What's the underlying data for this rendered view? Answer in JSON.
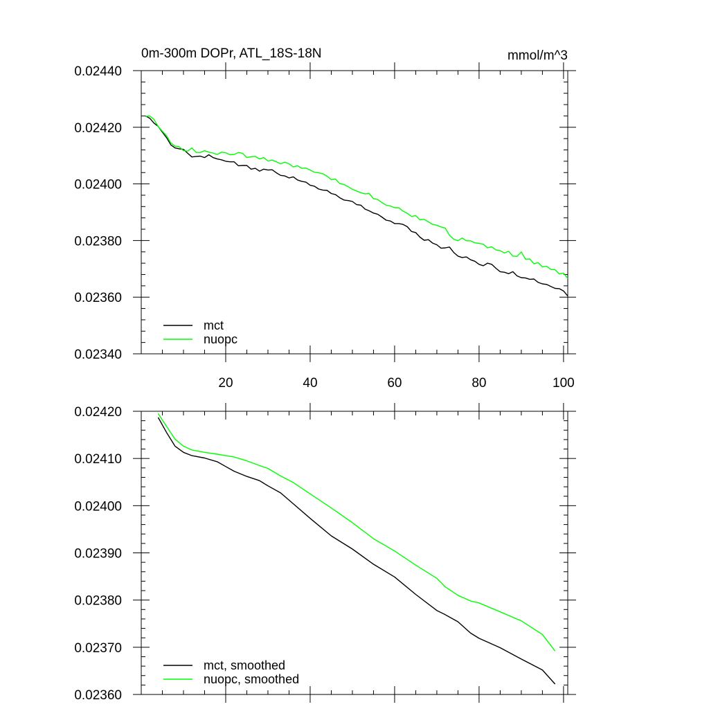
{
  "chart_data": [
    {
      "type": "line",
      "title": "0m-300m DOPr, ATL_18S-18N",
      "units": "mmol/m^3",
      "xlim": [
        0,
        101
      ],
      "ylim": [
        0.0234,
        0.0244
      ],
      "x_ticks": [
        20,
        40,
        60,
        80,
        100
      ],
      "y_ticks": [
        "0.02340",
        "0.02360",
        "0.02380",
        "0.02400",
        "0.02420",
        "0.02440"
      ],
      "y_tick_values": [
        0.0234,
        0.0236,
        0.0238,
        0.024,
        0.0242,
        0.0244
      ],
      "legend_position": "bottom-left",
      "series": [
        {
          "name": "mct",
          "color": "#000000",
          "x": [
            1,
            2,
            3,
            4,
            5,
            6,
            7,
            8,
            9,
            10,
            11,
            12,
            13,
            14,
            15,
            16,
            17,
            18,
            19,
            20,
            21,
            22,
            23,
            24,
            25,
            26,
            27,
            28,
            29,
            30,
            31,
            32,
            33,
            34,
            35,
            36,
            37,
            38,
            39,
            40,
            41,
            42,
            43,
            44,
            45,
            46,
            47,
            48,
            49,
            50,
            51,
            52,
            53,
            54,
            55,
            56,
            57,
            58,
            59,
            60,
            61,
            62,
            63,
            64,
            65,
            66,
            67,
            68,
            69,
            70,
            71,
            72,
            73,
            74,
            75,
            76,
            77,
            78,
            79,
            80,
            81,
            82,
            83,
            84,
            85,
            86,
            87,
            88,
            89,
            90,
            91,
            92,
            93,
            94,
            95,
            96,
            97,
            98,
            99,
            100,
            101
          ],
          "values": [
            0.02424,
            0.024232,
            0.024215,
            0.024203,
            0.024183,
            0.024163,
            0.024138,
            0.024127,
            0.024124,
            0.024122,
            0.024108,
            0.024095,
            0.024097,
            0.024098,
            0.024093,
            0.024103,
            0.024093,
            0.024088,
            0.024085,
            0.02408,
            0.024078,
            0.024078,
            0.024064,
            0.024065,
            0.024065,
            0.024052,
            0.024055,
            0.024045,
            0.024052,
            0.024049,
            0.02405,
            0.024039,
            0.02403,
            0.024028,
            0.024021,
            0.024025,
            0.024014,
            0.024009,
            0.024006,
            0.023995,
            0.023992,
            0.023982,
            0.023978,
            0.023977,
            0.023966,
            0.023962,
            0.023951,
            0.023943,
            0.023941,
            0.023938,
            0.023927,
            0.023925,
            0.023911,
            0.023905,
            0.023897,
            0.023893,
            0.023883,
            0.023872,
            0.023869,
            0.02386,
            0.02386,
            0.023857,
            0.023849,
            0.023832,
            0.023828,
            0.023812,
            0.023801,
            0.023803,
            0.023791,
            0.023785,
            0.023773,
            0.023774,
            0.023777,
            0.023758,
            0.023745,
            0.02374,
            0.023742,
            0.023732,
            0.023727,
            0.023716,
            0.023711,
            0.02372,
            0.023716,
            0.023702,
            0.02369,
            0.023688,
            0.023683,
            0.02369,
            0.023675,
            0.023669,
            0.023668,
            0.023663,
            0.023664,
            0.023652,
            0.023647,
            0.023645,
            0.023638,
            0.023631,
            0.02363,
            0.023622,
            0.023604
          ]
        },
        {
          "name": "nuopc",
          "color": "#00ff00",
          "x": [
            1,
            2,
            3,
            4,
            5,
            6,
            7,
            8,
            9,
            10,
            11,
            12,
            13,
            14,
            15,
            16,
            17,
            18,
            19,
            20,
            21,
            22,
            23,
            24,
            25,
            26,
            27,
            28,
            29,
            30,
            31,
            32,
            33,
            34,
            35,
            36,
            37,
            38,
            39,
            40,
            41,
            42,
            43,
            44,
            45,
            46,
            47,
            48,
            49,
            50,
            51,
            52,
            53,
            54,
            55,
            56,
            57,
            58,
            59,
            60,
            61,
            62,
            63,
            64,
            65,
            66,
            67,
            68,
            69,
            70,
            71,
            72,
            73,
            74,
            75,
            76,
            77,
            78,
            79,
            80,
            81,
            82,
            83,
            84,
            85,
            86,
            87,
            88,
            89,
            90,
            91,
            92,
            93,
            94,
            95,
            96,
            97,
            98,
            99,
            100,
            101
          ],
          "values": [
            0.024238,
            0.02424,
            0.024228,
            0.024203,
            0.024186,
            0.02417,
            0.024145,
            0.024133,
            0.024131,
            0.024117,
            0.024116,
            0.024127,
            0.024111,
            0.024111,
            0.024117,
            0.024112,
            0.024109,
            0.024104,
            0.024112,
            0.02411,
            0.024103,
            0.024104,
            0.024111,
            0.024108,
            0.024093,
            0.024096,
            0.024097,
            0.024088,
            0.024093,
            0.024081,
            0.024084,
            0.024078,
            0.024071,
            0.024077,
            0.024071,
            0.02406,
            0.024064,
            0.024055,
            0.024056,
            0.024049,
            0.024041,
            0.024039,
            0.024036,
            0.024027,
            0.024015,
            0.024017,
            0.024001,
            0.023998,
            0.02399,
            0.023981,
            0.023975,
            0.023969,
            0.023965,
            0.023966,
            0.023948,
            0.023945,
            0.023934,
            0.023925,
            0.023922,
            0.023916,
            0.023916,
            0.023904,
            0.023896,
            0.023885,
            0.023888,
            0.023873,
            0.023875,
            0.023866,
            0.023857,
            0.023854,
            0.023848,
            0.023844,
            0.023818,
            0.023805,
            0.023799,
            0.023809,
            0.023799,
            0.023799,
            0.023792,
            0.02379,
            0.023787,
            0.023774,
            0.023778,
            0.023767,
            0.023764,
            0.023756,
            0.023762,
            0.023745,
            0.023744,
            0.02376,
            0.023734,
            0.023735,
            0.023718,
            0.023722,
            0.023707,
            0.023709,
            0.023698,
            0.023697,
            0.023682,
            0.023685,
            0.023666
          ]
        }
      ]
    },
    {
      "type": "line",
      "title": "",
      "units": "",
      "xlim": [
        0,
        101
      ],
      "ylim": [
        0.0236,
        0.0242
      ],
      "x_ticks": [
        20,
        40,
        60,
        80,
        100
      ],
      "y_ticks": [
        "0.02360",
        "0.02370",
        "0.02380",
        "0.02390",
        "0.02400",
        "0.02410",
        "0.02420"
      ],
      "y_tick_values": [
        0.0236,
        0.0237,
        0.0238,
        0.0239,
        0.024,
        0.0241,
        0.0242
      ],
      "legend_position": "bottom-left",
      "series": [
        {
          "name": "mct, smoothed",
          "color": "#000000",
          "x": [
            4,
            6,
            8,
            10,
            12,
            15,
            18,
            20,
            22,
            25,
            28,
            30,
            33,
            36,
            40,
            45,
            50,
            55,
            60,
            65,
            70,
            72,
            75,
            78,
            80,
            85,
            90,
            95,
            98
          ],
          "values": [
            0.024187,
            0.024155,
            0.024126,
            0.024113,
            0.024106,
            0.024101,
            0.024093,
            0.024083,
            0.024073,
            0.024062,
            0.024053,
            0.024042,
            0.024027,
            0.024004,
            0.023973,
            0.023936,
            0.023908,
            0.023876,
            0.023849,
            0.023812,
            0.023778,
            0.023769,
            0.023754,
            0.02373,
            0.023719,
            0.023699,
            0.023675,
            0.023652,
            0.023622
          ]
        },
        {
          "name": "nuopc, smoothed",
          "color": "#00ff00",
          "x": [
            4,
            6,
            8,
            10,
            12,
            15,
            18,
            20,
            22,
            25,
            28,
            30,
            33,
            36,
            40,
            45,
            50,
            55,
            60,
            65,
            70,
            72,
            75,
            78,
            80,
            85,
            90,
            95,
            98
          ],
          "values": [
            0.024195,
            0.024168,
            0.024141,
            0.024126,
            0.024118,
            0.024113,
            0.024109,
            0.024106,
            0.024103,
            0.024095,
            0.024085,
            0.024079,
            0.024063,
            0.024049,
            0.024025,
            0.023995,
            0.023964,
            0.02393,
            0.023904,
            0.023874,
            0.023846,
            0.023828,
            0.02381,
            0.023798,
            0.023794,
            0.023775,
            0.023756,
            0.023727,
            0.023692
          ]
        }
      ]
    }
  ]
}
